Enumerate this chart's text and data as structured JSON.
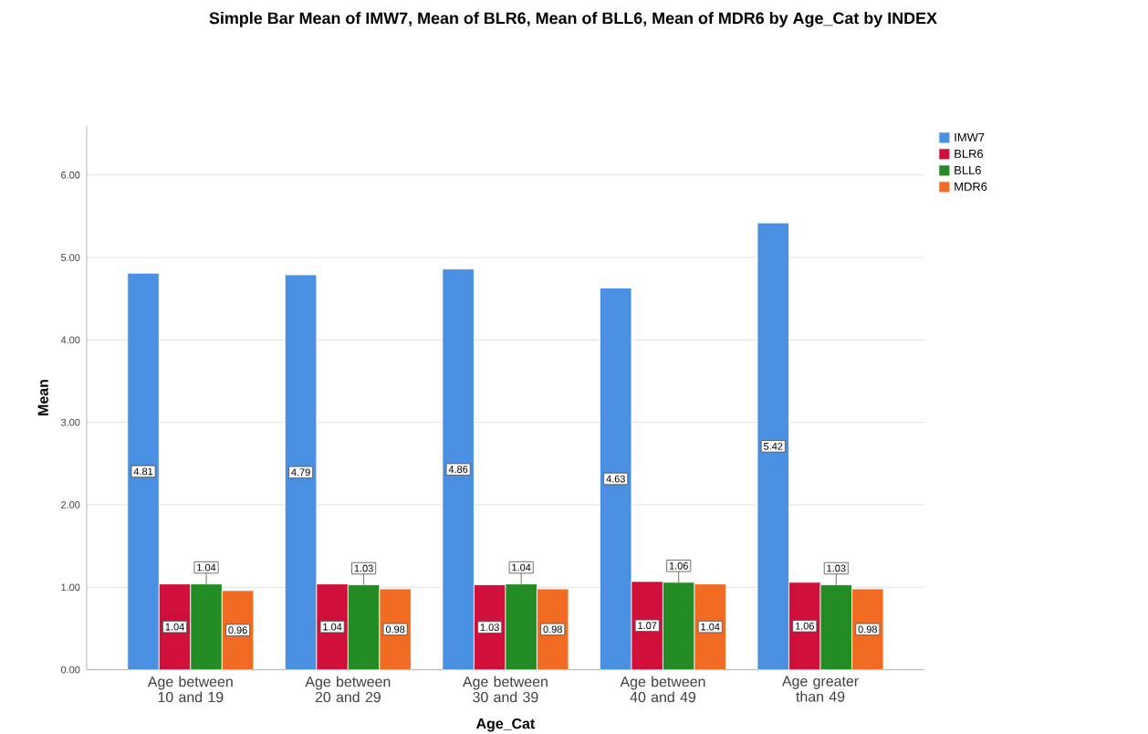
{
  "chart_data": {
    "type": "bar",
    "title": "Simple Bar Mean of IMW7, Mean of BLR6, Mean of BLL6, Mean of MDR6 by Age_Cat by INDEX",
    "xlabel": "Age_Cat",
    "ylabel": "Mean",
    "categories": [
      "Age between 10 and 19",
      "Age between 20 and 29",
      "Age between 30 and 39",
      "Age between 40 and 49",
      "Age greater than 49"
    ],
    "series": [
      {
        "name": "IMW7",
        "color": "#4a90e2",
        "values": [
          4.81,
          4.79,
          4.86,
          4.63,
          5.42
        ]
      },
      {
        "name": "BLR6",
        "color": "#d0103a",
        "values": [
          1.04,
          1.04,
          1.03,
          1.07,
          1.06
        ]
      },
      {
        "name": "BLL6",
        "color": "#238b23",
        "values": [
          1.04,
          1.03,
          1.04,
          1.06,
          1.03
        ]
      },
      {
        "name": "MDR6",
        "color": "#f26b22",
        "values": [
          0.96,
          0.98,
          0.98,
          1.04,
          0.98
        ]
      }
    ],
    "ylim": [
      0,
      6.6
    ],
    "yticks": [
      {
        "value": 0,
        "label": "0.00"
      },
      {
        "value": 1,
        "label": "1.00"
      },
      {
        "value": 2,
        "label": "2.00"
      },
      {
        "value": 3,
        "label": "3.00"
      },
      {
        "value": 4,
        "label": "4.00"
      },
      {
        "value": 5,
        "label": "5.00"
      },
      {
        "value": 6,
        "label": "6.00"
      }
    ],
    "grid": "y",
    "legend": "top right",
    "data_labels": true
  }
}
